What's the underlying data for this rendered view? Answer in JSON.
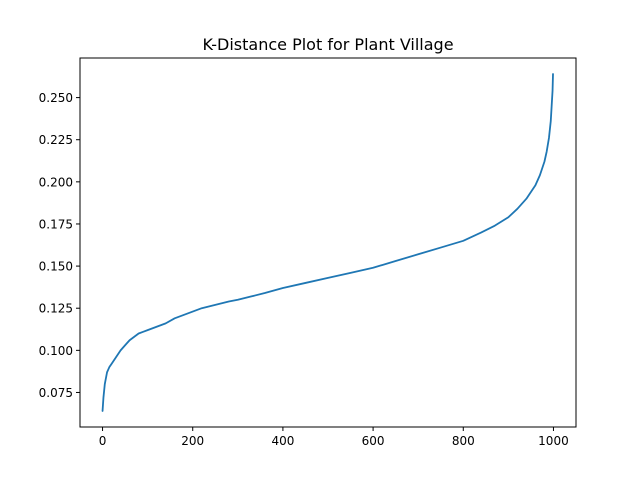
{
  "chart_data": {
    "type": "line",
    "title": "K-Distance Plot for Plant Village",
    "xlabel": "",
    "ylabel": "",
    "xlim": [
      -50,
      1050
    ],
    "ylim": [
      0.0545,
      0.2735
    ],
    "xticks": [
      0,
      200,
      400,
      600,
      800,
      1000
    ],
    "yticks": [
      0.075,
      0.1,
      0.125,
      0.15,
      0.175,
      0.2,
      0.225,
      0.25
    ],
    "ytick_labels": [
      "0.075",
      "0.100",
      "0.125",
      "0.150",
      "0.175",
      "0.200",
      "0.225",
      "0.250"
    ],
    "grid": false,
    "line_color": "#1f77b4",
    "series": [
      {
        "x": [
          0,
          2,
          5,
          10,
          15,
          20,
          30,
          40,
          50,
          60,
          70,
          80,
          90,
          100,
          120,
          140,
          160,
          180,
          200,
          220,
          250,
          280,
          300,
          330,
          360,
          400,
          450,
          500,
          550,
          600,
          650,
          700,
          750,
          800,
          840,
          870,
          900,
          920,
          940,
          960,
          970,
          980,
          985,
          990,
          994,
          996,
          998,
          999
        ],
        "y": [
          0.064,
          0.072,
          0.08,
          0.087,
          0.09,
          0.092,
          0.096,
          0.1,
          0.103,
          0.106,
          0.108,
          0.11,
          0.111,
          0.112,
          0.114,
          0.116,
          0.119,
          0.121,
          0.123,
          0.125,
          0.127,
          0.129,
          0.13,
          0.132,
          0.134,
          0.137,
          0.14,
          0.143,
          0.146,
          0.149,
          0.153,
          0.157,
          0.161,
          0.165,
          0.17,
          0.174,
          0.179,
          0.184,
          0.19,
          0.198,
          0.204,
          0.212,
          0.218,
          0.226,
          0.236,
          0.245,
          0.254,
          0.264
        ]
      }
    ]
  }
}
